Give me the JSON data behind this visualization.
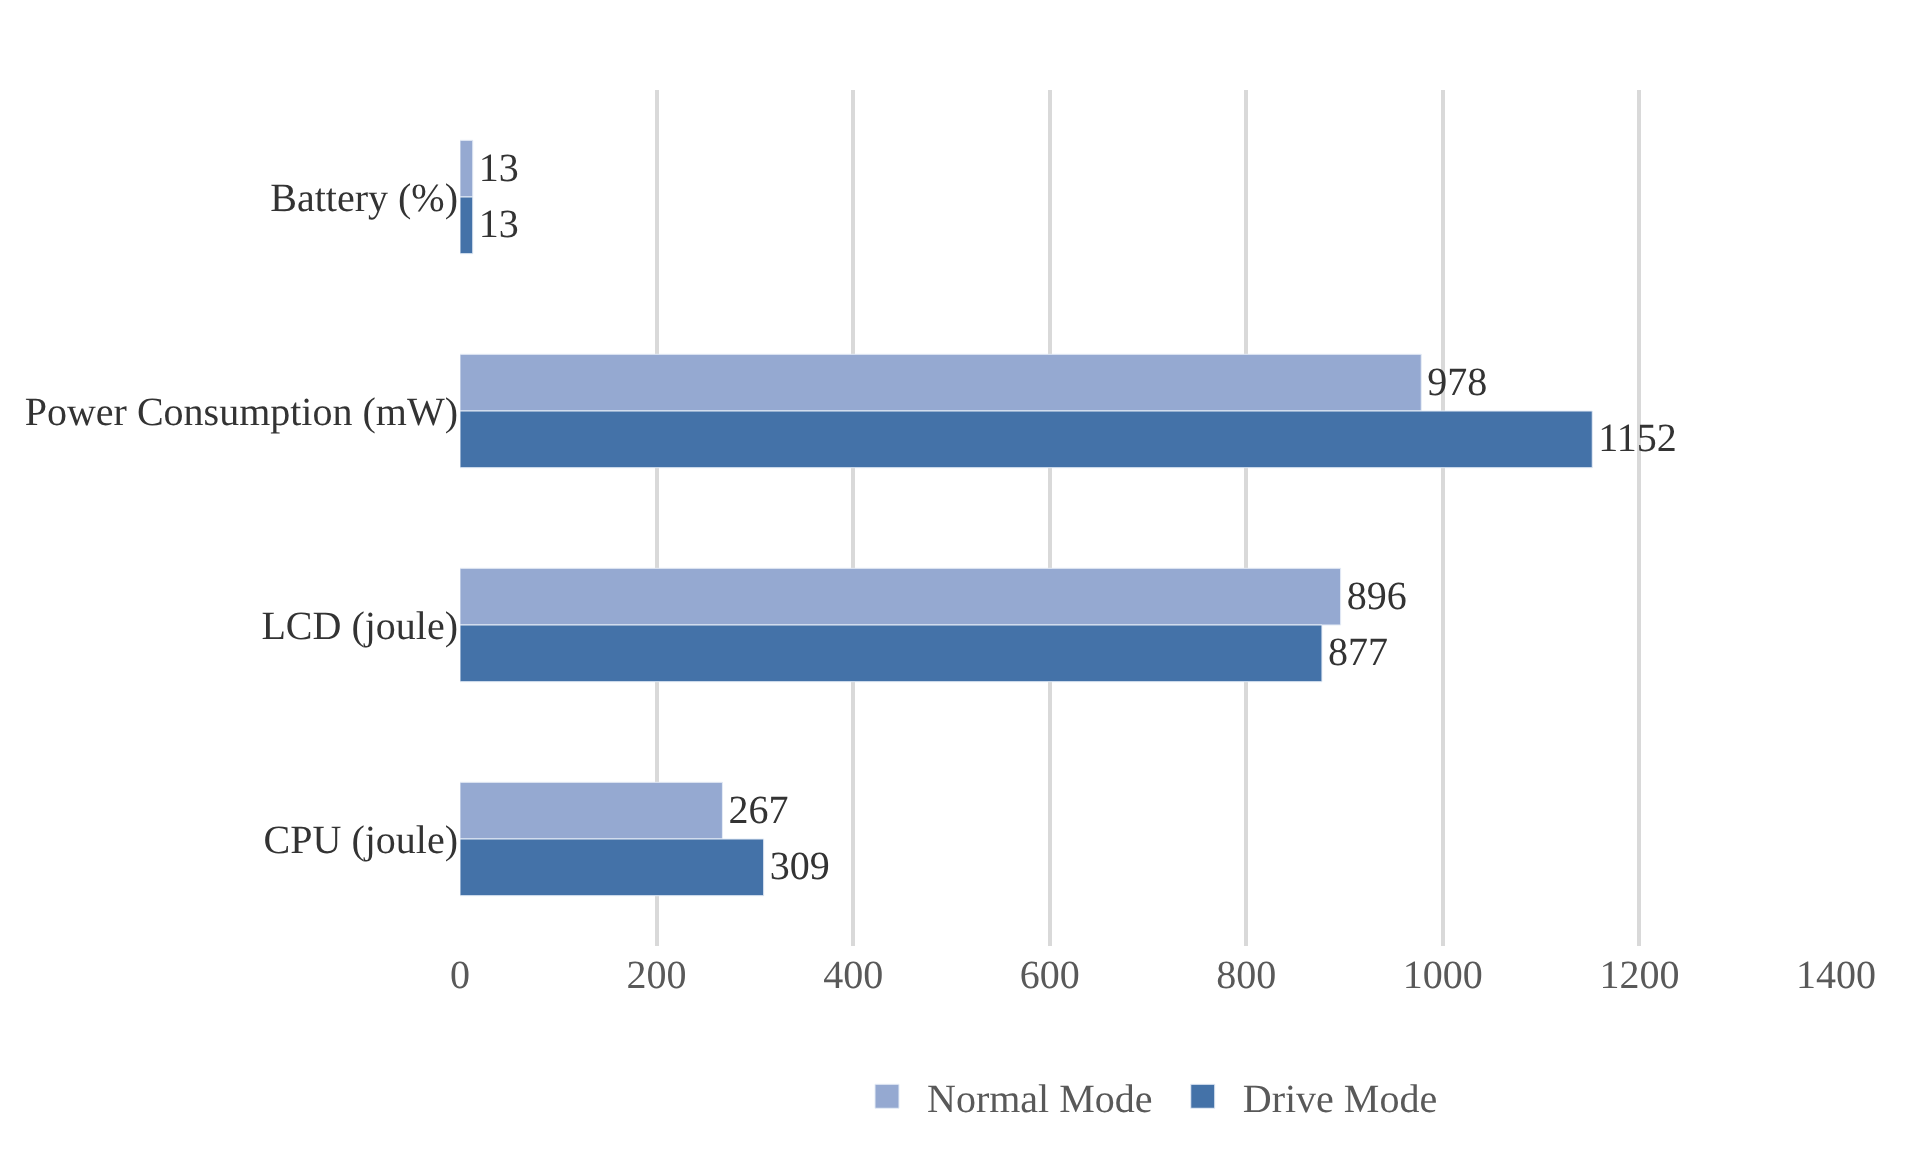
{
  "chart_data": {
    "type": "bar",
    "orientation": "horizontal",
    "categories": [
      "Battery (%)",
      "Power Consumption (mW)",
      "LCD (joule)",
      "CPU (joule)"
    ],
    "series": [
      {
        "name": "Normal Mode",
        "color": "#95a9d1",
        "values": [
          13,
          978,
          896,
          267
        ]
      },
      {
        "name": "Drive Mode",
        "color": "#4472a8",
        "values": [
          13,
          1152,
          877,
          309
        ]
      }
    ],
    "xlim": [
      0,
      1400
    ],
    "xticks": [
      0,
      200,
      400,
      600,
      800,
      1000,
      1200,
      1400
    ],
    "grid": "x",
    "legend": "bottom",
    "data_labels": true
  }
}
